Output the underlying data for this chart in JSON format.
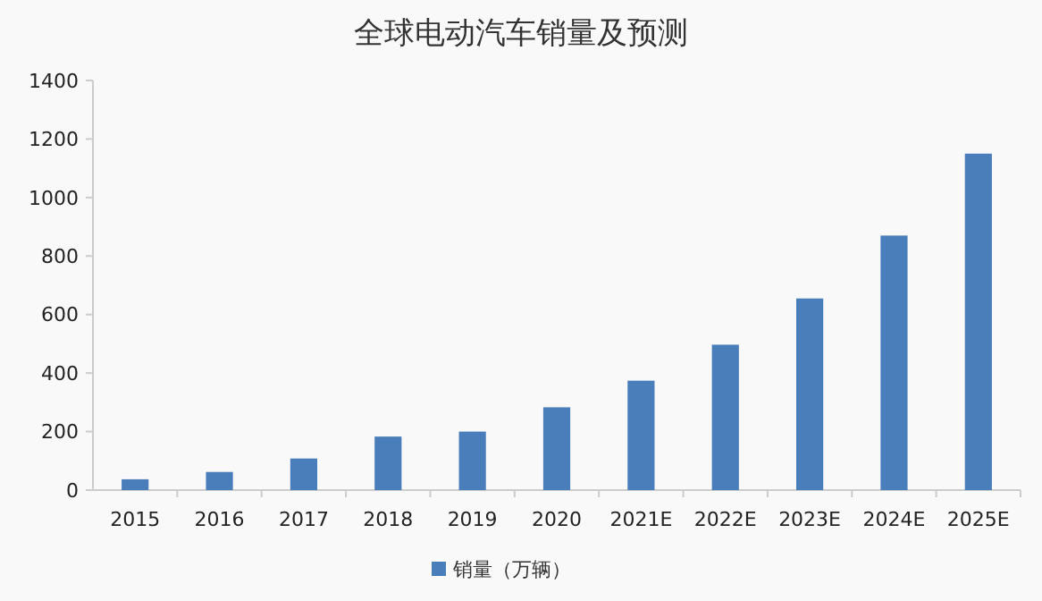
{
  "chart_data": {
    "type": "bar",
    "title": "全球电动汽车销量及预测",
    "categories": [
      "2015",
      "2016",
      "2017",
      "2018",
      "2019",
      "2020",
      "2021E",
      "2022E",
      "2023E",
      "2024E",
      "2025E"
    ],
    "series": [
      {
        "name": "销量（万辆）",
        "color": "#4a7ebb",
        "values": [
          37,
          62,
          108,
          183,
          200,
          283,
          374,
          497,
          655,
          870,
          1150
        ]
      }
    ],
    "ylim": [
      0,
      1400
    ],
    "yticks": [
      0,
      200,
      400,
      600,
      800,
      1000,
      1200,
      1400
    ],
    "legend": "bottom"
  }
}
